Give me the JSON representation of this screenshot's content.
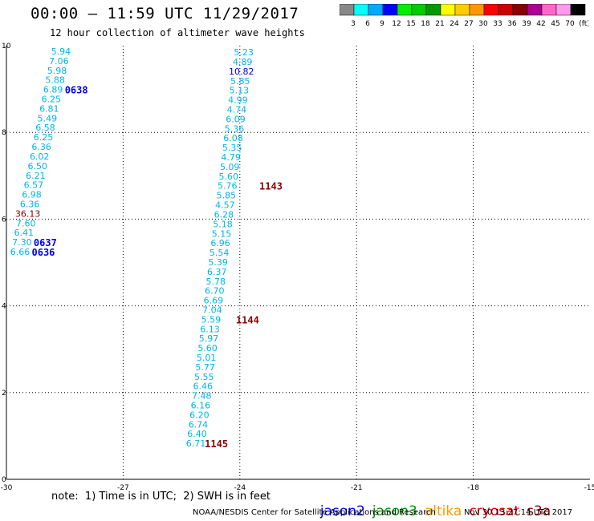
{
  "title": "00:00 – 11:59 UTC 11/29/2017",
  "subtitle": "12 hour collection of altimeter wave heights",
  "note": "note:  1) Time is in UTC;  2) SWH is in feet",
  "credit": "NOAA/NESDIS Center for Satellite Applications and Research",
  "stamp": "Nov 30 13:27:14 UTC 2017",
  "satellites": [
    {
      "name": "jason2",
      "color": "#0000ee"
    },
    {
      "name": "jason3",
      "color": "#009900"
    },
    {
      "name": "altika",
      "color": "#ff9900"
    },
    {
      "name": "cryosat",
      "color": "#dd0000"
    },
    {
      "name": "s3a",
      "color": "#880000"
    }
  ],
  "colorbar": {
    "labels": [
      "3",
      "6",
      "9",
      "12",
      "15",
      "18",
      "21",
      "24",
      "27",
      "30",
      "33",
      "36",
      "39",
      "42",
      "45",
      "70",
      "(ft)"
    ],
    "colors": [
      "#888888",
      "#00ffff",
      "#00aaff",
      "#0000ff",
      "#00ee00",
      "#00cc00",
      "#009900",
      "#ffff00",
      "#ffcc00",
      "#ff9900",
      "#ff0000",
      "#cc0000",
      "#880000",
      "#aa0099",
      "#ff66cc",
      "#ff99ee",
      "#000000"
    ]
  },
  "chart_data": {
    "type": "scatter",
    "title": "00:00 – 11:59 UTC 11/29/2017",
    "subtitle": "12 hour collection of altimeter wave heights",
    "xlim": [
      -30,
      -15
    ],
    "ylim": [
      0,
      10
    ],
    "xticks": [
      "-30",
      "-27",
      "-24",
      "-21",
      "-18",
      "-15"
    ],
    "yticks": [
      "0",
      "2",
      "4",
      "6",
      "8",
      "10"
    ],
    "grid": true,
    "tracks": [
      {
        "values": [
          {
            "x": -28.6,
            "y": 9.87,
            "v": "5.94",
            "c": "#00b4ee"
          },
          {
            "x": -28.65,
            "y": 9.65,
            "v": "7.06",
            "c": "#00b4ee"
          },
          {
            "x": -28.7,
            "y": 9.43,
            "v": "5.98",
            "c": "#00b4ee"
          },
          {
            "x": -28.75,
            "y": 9.21,
            "v": "5.88",
            "c": "#00b4ee"
          },
          {
            "x": -28.8,
            "y": 8.99,
            "v": "6.89",
            "c": "#00b4ee"
          },
          {
            "x": -28.85,
            "y": 8.77,
            "v": "6.25",
            "c": "#00b4ee"
          },
          {
            "x": -28.9,
            "y": 8.55,
            "v": "6.81",
            "c": "#00b4ee"
          },
          {
            "x": -28.95,
            "y": 8.33,
            "v": "5.49",
            "c": "#00b4ee"
          },
          {
            "x": -29.0,
            "y": 8.11,
            "v": "6.58",
            "c": "#00b4ee"
          },
          {
            "x": -29.05,
            "y": 7.89,
            "v": "6.25",
            "c": "#00b4ee"
          },
          {
            "x": -29.1,
            "y": 7.67,
            "v": "6.36",
            "c": "#00b4ee"
          },
          {
            "x": -29.15,
            "y": 7.45,
            "v": "6.02",
            "c": "#00b4ee"
          },
          {
            "x": -29.2,
            "y": 7.23,
            "v": "6.50",
            "c": "#00b4ee"
          },
          {
            "x": -29.25,
            "y": 7.01,
            "v": "6.21",
            "c": "#00b4ee"
          },
          {
            "x": -29.3,
            "y": 6.79,
            "v": "6.57",
            "c": "#00b4ee"
          },
          {
            "x": -29.35,
            "y": 6.57,
            "v": "6.98",
            "c": "#00b4ee"
          },
          {
            "x": -29.4,
            "y": 6.35,
            "v": "6.36",
            "c": "#00b4ee"
          },
          {
            "x": -29.45,
            "y": 6.13,
            "v": "36.13",
            "c": "#880000"
          },
          {
            "x": -29.5,
            "y": 5.91,
            "v": "7.60",
            "c": "#00b4ee"
          },
          {
            "x": -29.55,
            "y": 5.69,
            "v": "6.41",
            "c": "#00b4ee"
          },
          {
            "x": -29.6,
            "y": 5.47,
            "v": "7.30",
            "c": "#00b4ee"
          },
          {
            "x": -29.65,
            "y": 5.25,
            "v": "6.66",
            "c": "#00b4ee"
          }
        ]
      },
      {
        "values": [
          {
            "x": -23.9,
            "y": 9.85,
            "v": "5.23",
            "c": "#00b4ee"
          },
          {
            "x": -23.93,
            "y": 9.63,
            "v": "4.89",
            "c": "#00b4ee"
          },
          {
            "x": -23.96,
            "y": 9.41,
            "v": "10.82",
            "c": "#0000cc"
          },
          {
            "x": -23.99,
            "y": 9.19,
            "v": "5.85",
            "c": "#00b4ee"
          },
          {
            "x": -24.02,
            "y": 8.97,
            "v": "5.13",
            "c": "#00b4ee"
          },
          {
            "x": -24.05,
            "y": 8.75,
            "v": "4.99",
            "c": "#00b4ee"
          },
          {
            "x": -24.08,
            "y": 8.53,
            "v": "4.74",
            "c": "#00b4ee"
          },
          {
            "x": -24.11,
            "y": 8.31,
            "v": "6.09",
            "c": "#00b4ee"
          },
          {
            "x": -24.14,
            "y": 8.09,
            "v": "5.36",
            "c": "#00b4ee"
          },
          {
            "x": -24.17,
            "y": 7.87,
            "v": "6.08",
            "c": "#00b4ee"
          },
          {
            "x": -24.2,
            "y": 7.65,
            "v": "5.35",
            "c": "#00b4ee"
          },
          {
            "x": -24.23,
            "y": 7.43,
            "v": "4.79",
            "c": "#00b4ee"
          },
          {
            "x": -24.26,
            "y": 7.21,
            "v": "5.09",
            "c": "#00b4ee"
          },
          {
            "x": -24.29,
            "y": 6.99,
            "v": "5.60",
            "c": "#00b4ee"
          },
          {
            "x": -24.32,
            "y": 6.77,
            "v": "5.76",
            "c": "#00b4ee"
          },
          {
            "x": -24.35,
            "y": 6.55,
            "v": "5.85",
            "c": "#00b4ee"
          },
          {
            "x": -24.38,
            "y": 6.33,
            "v": "4.57",
            "c": "#00b4ee"
          },
          {
            "x": -24.41,
            "y": 6.11,
            "v": "6.28",
            "c": "#00b4ee"
          },
          {
            "x": -24.44,
            "y": 5.89,
            "v": "5.18",
            "c": "#00b4ee"
          },
          {
            "x": -24.47,
            "y": 5.67,
            "v": "5.15",
            "c": "#00b4ee"
          },
          {
            "x": -24.5,
            "y": 5.45,
            "v": "6.96",
            "c": "#00b4ee"
          },
          {
            "x": -24.53,
            "y": 5.23,
            "v": "5.54",
            "c": "#00b4ee"
          },
          {
            "x": -24.56,
            "y": 5.01,
            "v": "5.39",
            "c": "#00b4ee"
          },
          {
            "x": -24.59,
            "y": 4.79,
            "v": "6.37",
            "c": "#00b4ee"
          },
          {
            "x": -24.62,
            "y": 4.57,
            "v": "5.78",
            "c": "#00b4ee"
          },
          {
            "x": -24.65,
            "y": 4.35,
            "v": "6.70",
            "c": "#00b4ee"
          },
          {
            "x": -24.68,
            "y": 4.13,
            "v": "6.69",
            "c": "#00b4ee"
          },
          {
            "x": -24.71,
            "y": 3.91,
            "v": "7.04",
            "c": "#00b4ee"
          },
          {
            "x": -24.74,
            "y": 3.69,
            "v": "5.59",
            "c": "#00b4ee"
          },
          {
            "x": -24.77,
            "y": 3.47,
            "v": "6.13",
            "c": "#00b4ee"
          },
          {
            "x": -24.8,
            "y": 3.25,
            "v": "5.97",
            "c": "#00b4ee"
          },
          {
            "x": -24.83,
            "y": 3.03,
            "v": "5.60",
            "c": "#00b4ee"
          },
          {
            "x": -24.86,
            "y": 2.81,
            "v": "5.01",
            "c": "#00b4ee"
          },
          {
            "x": -24.89,
            "y": 2.59,
            "v": "5.77",
            "c": "#00b4ee"
          },
          {
            "x": -24.92,
            "y": 2.37,
            "v": "5.55",
            "c": "#00b4ee"
          },
          {
            "x": -24.95,
            "y": 2.15,
            "v": "6.46",
            "c": "#00b4ee"
          },
          {
            "x": -24.98,
            "y": 1.93,
            "v": "7.48",
            "c": "#00b4ee"
          },
          {
            "x": -25.01,
            "y": 1.71,
            "v": "6.16",
            "c": "#00b4ee"
          },
          {
            "x": -25.04,
            "y": 1.49,
            "v": "6.20",
            "c": "#00b4ee"
          },
          {
            "x": -25.07,
            "y": 1.27,
            "v": "6.74",
            "c": "#00b4ee"
          },
          {
            "x": -25.1,
            "y": 1.05,
            "v": "6.40",
            "c": "#00b4ee"
          },
          {
            "x": -25.13,
            "y": 0.83,
            "v": "6.71",
            "c": "#00b4ee"
          }
        ]
      }
    ],
    "time_labels": [
      {
        "x": -28.5,
        "y": 8.99,
        "t": "0638",
        "c": "#0000ee"
      },
      {
        "x": -23.5,
        "y": 6.77,
        "t": "1143",
        "c": "#880000"
      },
      {
        "x": -29.3,
        "y": 5.47,
        "t": "0637",
        "c": "#0000ee"
      },
      {
        "x": -29.35,
        "y": 5.25,
        "t": "0636",
        "c": "#0000ee"
      },
      {
        "x": -24.1,
        "y": 3.69,
        "t": "1144",
        "c": "#880000"
      },
      {
        "x": -24.9,
        "y": 0.83,
        "t": "1145",
        "c": "#880000"
      }
    ]
  }
}
